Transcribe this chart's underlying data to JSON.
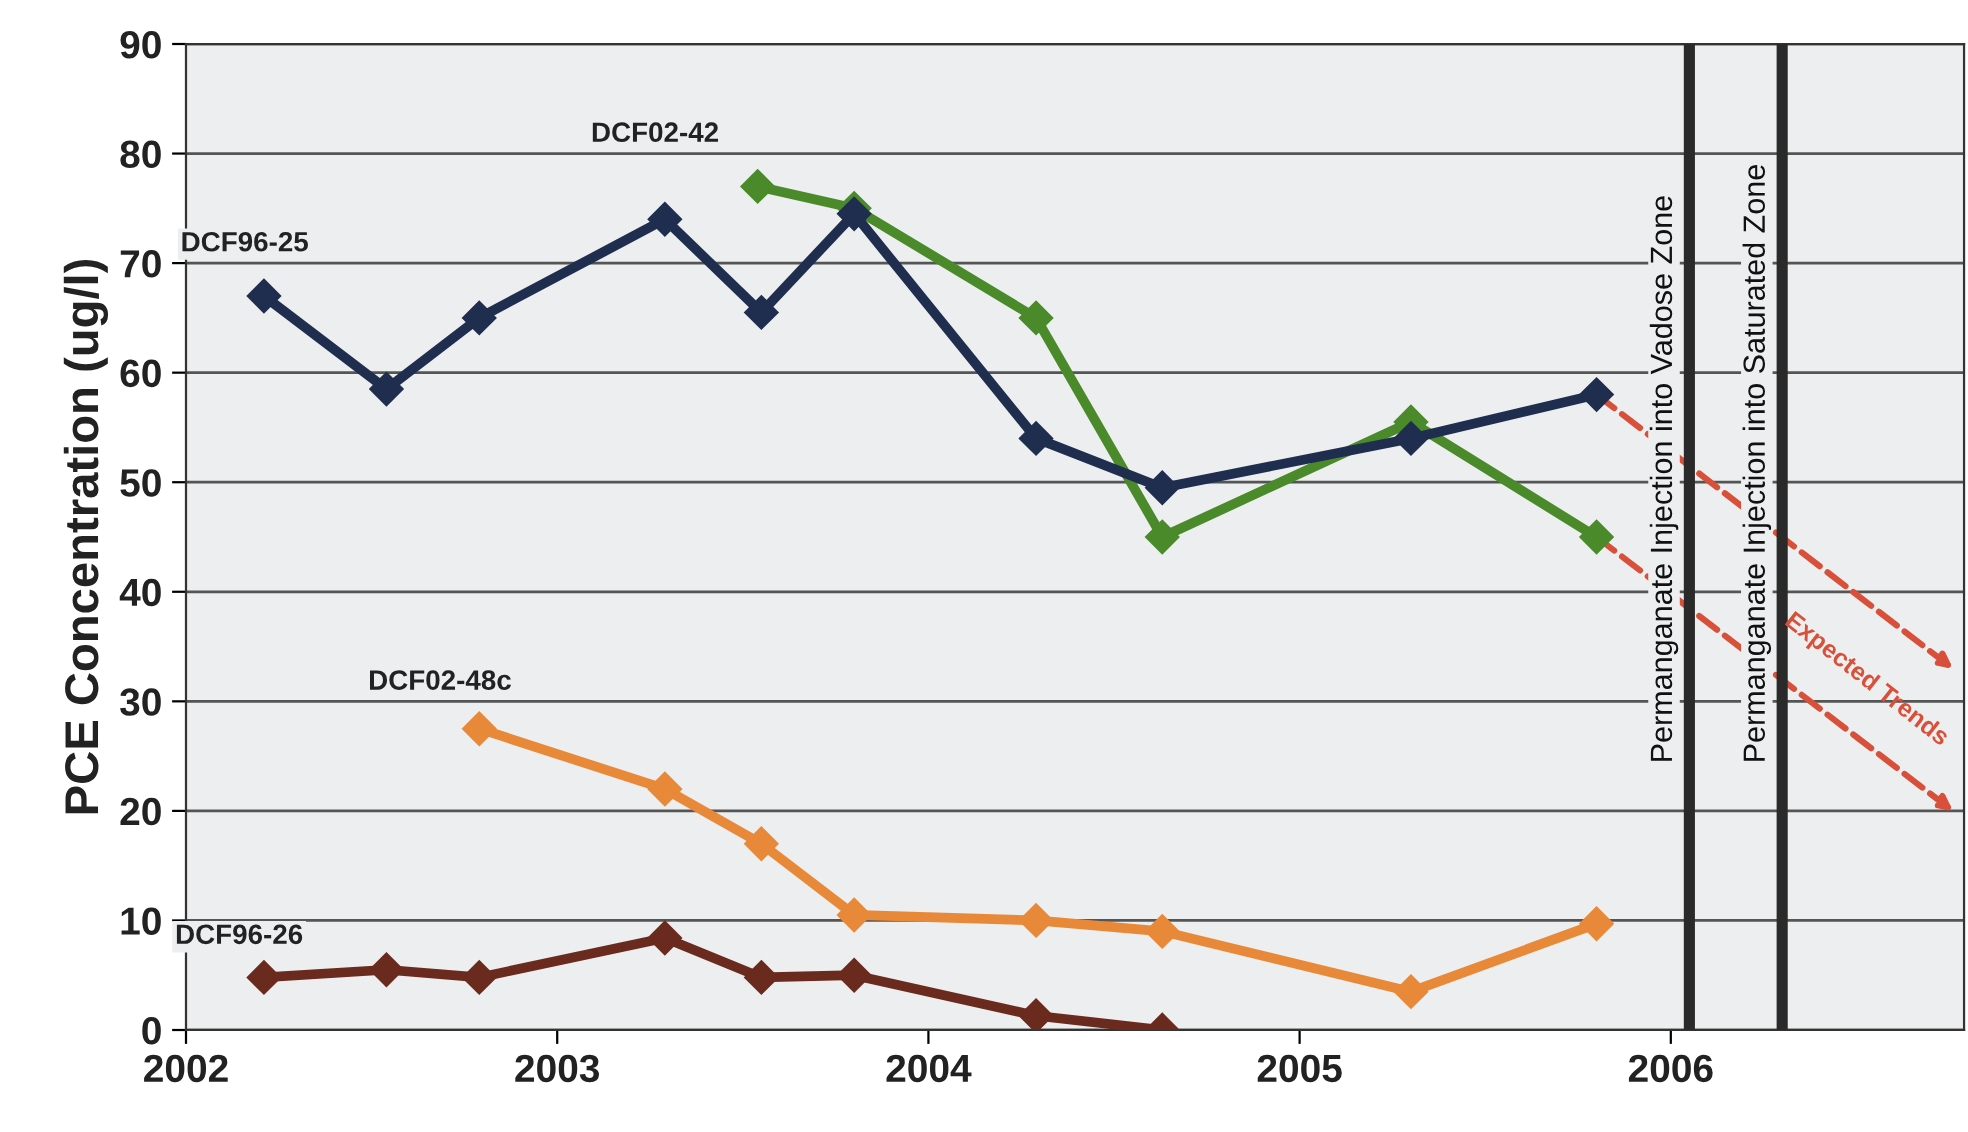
{
  "chart_data": {
    "type": "line",
    "ylabel": "PCE Concentration (ug/l)",
    "xlim": [
      2002,
      2006.79
    ],
    "xticks": [
      2002,
      2003,
      2004,
      2005,
      2006
    ],
    "ylim": [
      0,
      90
    ],
    "yticks": [
      0,
      10,
      20,
      30,
      40,
      50,
      60,
      70,
      80,
      90
    ],
    "grid": "y",
    "marker": "diamond",
    "line_style": "solid",
    "legend": false,
    "series": [
      {
        "name": "DCF96-25",
        "color": "#1f2d4f",
        "x": [
          2002.21,
          2002.54,
          2002.79,
          2003.29,
          2003.55,
          2003.8,
          2004.29,
          2004.63,
          2005.3,
          2005.8
        ],
        "values": [
          67,
          58.5,
          65,
          74,
          65.5,
          74.5,
          54,
          49.5,
          54,
          58
        ]
      },
      {
        "name": "DCF02-42",
        "color": "#4a8a2a",
        "x": [
          2003.54,
          2003.8,
          2004.29,
          2004.63,
          2005.3,
          2005.8
        ],
        "values": [
          77,
          75,
          65,
          45,
          55.5,
          45
        ]
      },
      {
        "name": "DCF02-48c",
        "color": "#e8893a",
        "x": [
          2002.79,
          2003.29,
          2003.55,
          2003.8,
          2004.29,
          2004.63,
          2005.3,
          2005.8
        ],
        "values": [
          27.5,
          22,
          17,
          10.5,
          10,
          9,
          3.5,
          9.7
        ]
      },
      {
        "name": "DCF96-26",
        "color": "#6b2a1e",
        "x": [
          2002.21,
          2002.54,
          2002.79,
          2003.29,
          2003.55,
          2003.8,
          2004.29,
          2004.63
        ],
        "values": [
          4.8,
          5.5,
          4.8,
          8.4,
          4.8,
          5,
          1.3,
          0
        ]
      }
    ],
    "ref_lines": [
      {
        "axis": "x",
        "value": 2006.05,
        "label": "Permanganate Injection into Vadose Zone",
        "color": "#2a2a2a"
      },
      {
        "axis": "x",
        "value": 2006.3,
        "label": "Permanganate Injection into Saturated Zone",
        "color": "#2a2a2a"
      }
    ],
    "annotations": [
      "Expected Trends"
    ]
  }
}
